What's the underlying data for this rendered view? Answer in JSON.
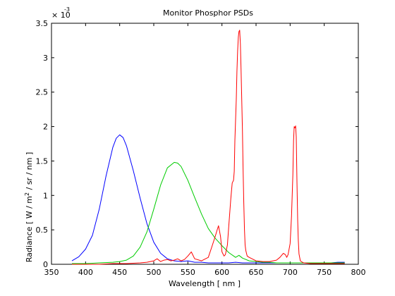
{
  "chart_data": {
    "type": "line",
    "title": "Monitor Phosphor PSDs",
    "xlabel": "Wavelength [ nm ]",
    "ylabel_parts": [
      "Radiance [ W / m",
      "2",
      " / sr / nm ]"
    ],
    "y_exponent_base": "× 10",
    "y_exponent_power": "-3",
    "xlim": [
      350,
      800
    ],
    "ylim": [
      0,
      3.5
    ],
    "xticks": [
      350,
      400,
      450,
      500,
      550,
      600,
      650,
      700,
      750,
      800
    ],
    "yticks": [
      0,
      0.5,
      1,
      1.5,
      2,
      2.5,
      3,
      3.5
    ],
    "ytick_labels": [
      "0",
      "0.5",
      "1",
      "1.5",
      "2",
      "2.5",
      "3",
      "3.5"
    ],
    "y_scale_factor": 0.001,
    "grid": false,
    "series": [
      {
        "color": "#0000ff",
        "x": [
          380,
          390,
          400,
          410,
          420,
          430,
          440,
          445,
          450,
          455,
          460,
          470,
          480,
          490,
          500,
          510,
          520,
          530,
          540,
          550,
          560,
          570,
          580,
          590,
          600,
          610,
          620,
          630,
          640,
          650,
          660,
          670,
          680,
          690,
          700,
          710,
          720,
          730,
          740,
          750,
          760,
          770,
          780
        ],
        "y": [
          0.05,
          0.11,
          0.22,
          0.42,
          0.8,
          1.28,
          1.7,
          1.83,
          1.88,
          1.84,
          1.72,
          1.36,
          0.96,
          0.59,
          0.32,
          0.16,
          0.08,
          0.05,
          0.04,
          0.05,
          0.03,
          0.03,
          0.02,
          0.02,
          0.02,
          0.02,
          0.03,
          0.02,
          0.02,
          0.02,
          0.02,
          0.02,
          0.02,
          0.02,
          0.02,
          0.02,
          0.02,
          0.02,
          0.02,
          0.02,
          0.02,
          0.03,
          0.03
        ]
      },
      {
        "color": "#00cc00",
        "x": [
          380,
          400,
          420,
          440,
          450,
          460,
          470,
          480,
          490,
          500,
          510,
          520,
          530,
          535,
          540,
          550,
          560,
          570,
          580,
          590,
          600,
          610,
          620,
          625,
          630,
          640,
          650,
          660,
          670,
          680,
          690,
          700,
          710,
          720,
          740,
          760,
          780
        ],
        "y": [
          0.01,
          0.01,
          0.02,
          0.03,
          0.04,
          0.06,
          0.12,
          0.25,
          0.47,
          0.8,
          1.15,
          1.4,
          1.48,
          1.47,
          1.42,
          1.22,
          0.97,
          0.73,
          0.52,
          0.38,
          0.27,
          0.17,
          0.1,
          0.13,
          0.09,
          0.05,
          0.04,
          0.03,
          0.03,
          0.02,
          0.02,
          0.02,
          0.02,
          0.02,
          0.02,
          0.02,
          0.02
        ]
      },
      {
        "color": "#ff0000",
        "x": [
          380,
          400,
          420,
          440,
          460,
          480,
          490,
          500,
          505,
          510,
          515,
          520,
          525,
          530,
          535,
          540,
          545,
          550,
          555,
          560,
          570,
          580,
          585,
          590,
          593,
          595,
          598,
          600,
          603,
          605,
          608,
          610,
          613,
          615,
          617,
          618,
          619,
          620,
          621,
          622,
          623,
          624,
          625,
          626,
          627,
          628,
          629,
          630,
          631,
          632,
          633,
          634,
          635,
          637,
          640,
          650,
          660,
          670,
          680,
          685,
          690,
          693,
          695,
          697,
          700,
          702,
          704,
          705,
          706,
          707,
          708,
          709,
          710,
          711,
          712,
          713,
          715,
          718,
          720,
          730,
          740,
          750,
          760,
          770,
          780
        ],
        "y": [
          0.0,
          0.0,
          0.0,
          0.01,
          0.01,
          0.02,
          0.03,
          0.05,
          0.08,
          0.04,
          0.06,
          0.07,
          0.05,
          0.06,
          0.08,
          0.05,
          0.07,
          0.12,
          0.18,
          0.08,
          0.05,
          0.1,
          0.25,
          0.4,
          0.5,
          0.56,
          0.4,
          0.18,
          0.12,
          0.14,
          0.28,
          0.55,
          0.95,
          1.18,
          1.22,
          1.35,
          1.8,
          2.1,
          2.4,
          2.8,
          3.1,
          3.3,
          3.38,
          3.4,
          3.2,
          2.85,
          2.4,
          1.95,
          1.4,
          0.9,
          0.5,
          0.28,
          0.2,
          0.12,
          0.1,
          0.05,
          0.04,
          0.04,
          0.06,
          0.1,
          0.16,
          0.14,
          0.1,
          0.14,
          0.3,
          0.7,
          1.3,
          1.8,
          2.0,
          1.98,
          2.01,
          1.85,
          1.2,
          0.65,
          0.35,
          0.15,
          0.05,
          0.03,
          0.02,
          0.01,
          0.01,
          0.01,
          0.01,
          0.01,
          0.01
        ]
      }
    ]
  }
}
